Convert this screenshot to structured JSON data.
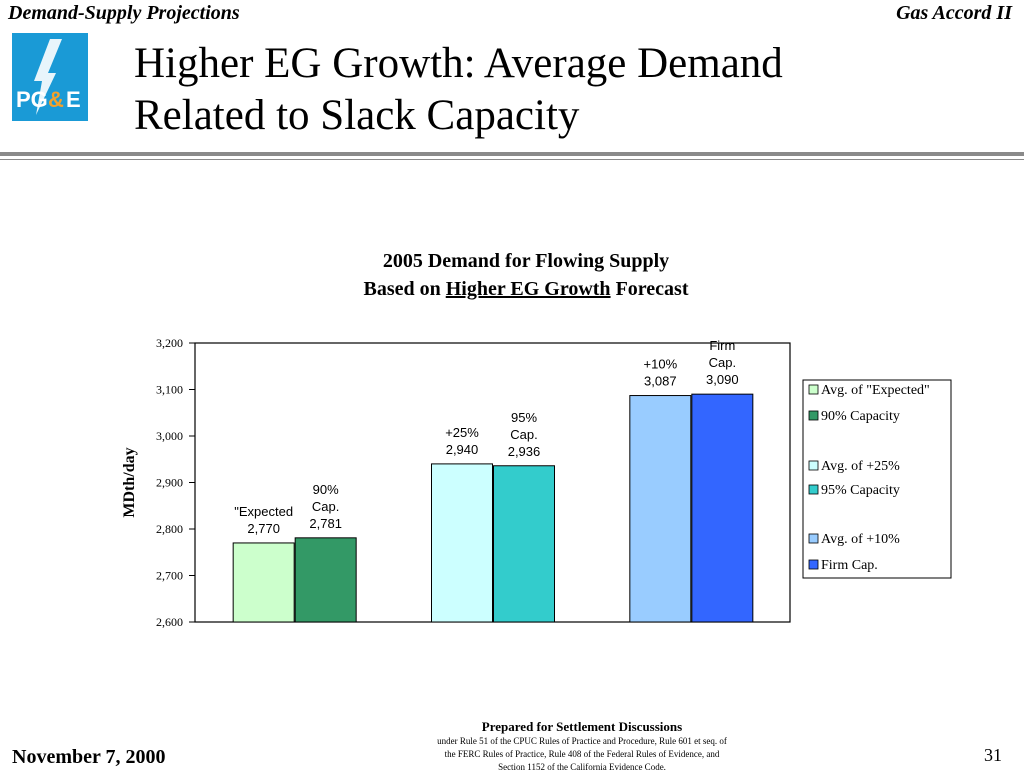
{
  "header": {
    "left": "Demand-Supply Projections",
    "right": "Gas Accord II"
  },
  "logo": {
    "text": "PG&E",
    "color_blue": "#1a9ad6",
    "color_orange": "#f2a12b"
  },
  "slide_title": {
    "line1": "Higher EG Growth:   Average Demand",
    "line2": "Related to Slack Capacity"
  },
  "chart_data": {
    "type": "bar",
    "title_line1": "2005 Demand for Flowing Supply",
    "title_line2_prefix": "Based on ",
    "title_line2_underlined": "Higher EG Growth",
    "title_line2_suffix": " Forecast",
    "ylabel": "MDth/day",
    "ylim": [
      2600,
      3200
    ],
    "yticks": [
      2600,
      2700,
      2800,
      2900,
      3000,
      3100,
      3200
    ],
    "ytick_labels": [
      "2,600",
      "2,700",
      "2,800",
      "2,900",
      "3,000",
      "3,100",
      "3,200"
    ],
    "grid": false,
    "legend_position": "right",
    "groups": [
      {
        "bars": [
          {
            "series": "Avg. of \"Expected\"",
            "value": 2770,
            "label_lines": [
              "\"Expected",
              "2,770"
            ],
            "color": "#ccffcc"
          },
          {
            "series": "90% Capacity",
            "value": 2781,
            "label_lines": [
              "90%",
              "Cap.",
              "2,781"
            ],
            "color": "#339966"
          }
        ]
      },
      {
        "bars": [
          {
            "series": "Avg. of +25%",
            "value": 2940,
            "label_lines": [
              "+25%",
              "2,940"
            ],
            "color": "#ccffff"
          },
          {
            "series": "95% Capacity",
            "value": 2936,
            "label_lines": [
              "95%",
              "Cap.",
              "2,936"
            ],
            "color": "#33cccc"
          }
        ]
      },
      {
        "bars": [
          {
            "series": "Avg. of +10%",
            "value": 3087,
            "label_lines": [
              "+10%",
              "3,087"
            ],
            "color": "#99ccff"
          },
          {
            "series": "Firm Cap.",
            "value": 3090,
            "label_lines": [
              "Firm",
              "Cap.",
              "3,090"
            ],
            "color": "#3366ff"
          }
        ]
      }
    ],
    "legend": [
      {
        "name": "Avg. of \"Expected\"",
        "color": "#ccffcc"
      },
      {
        "name": "90% Capacity",
        "color": "#339966"
      },
      {
        "name": "Avg. of +25%",
        "color": "#ccffff"
      },
      {
        "name": "95% Capacity",
        "color": "#33cccc"
      },
      {
        "name": "Avg. of +10%",
        "color": "#99ccff"
      },
      {
        "name": "Firm Cap.",
        "color": "#3366ff"
      }
    ]
  },
  "footer": {
    "date": "November 7, 2000",
    "page_number": "31",
    "notice_title": "Prepared for Settlement Discussions",
    "notice_line1": "under Rule 51 of the CPUC Rules of Practice and Procedure, Rule 601 et seq. of",
    "notice_line2": "the FERC Rules of Practice, Rule 408 of the Federal Rules of Evidence, and",
    "notice_line3": "Section 1152 of the California Evidence Code."
  }
}
